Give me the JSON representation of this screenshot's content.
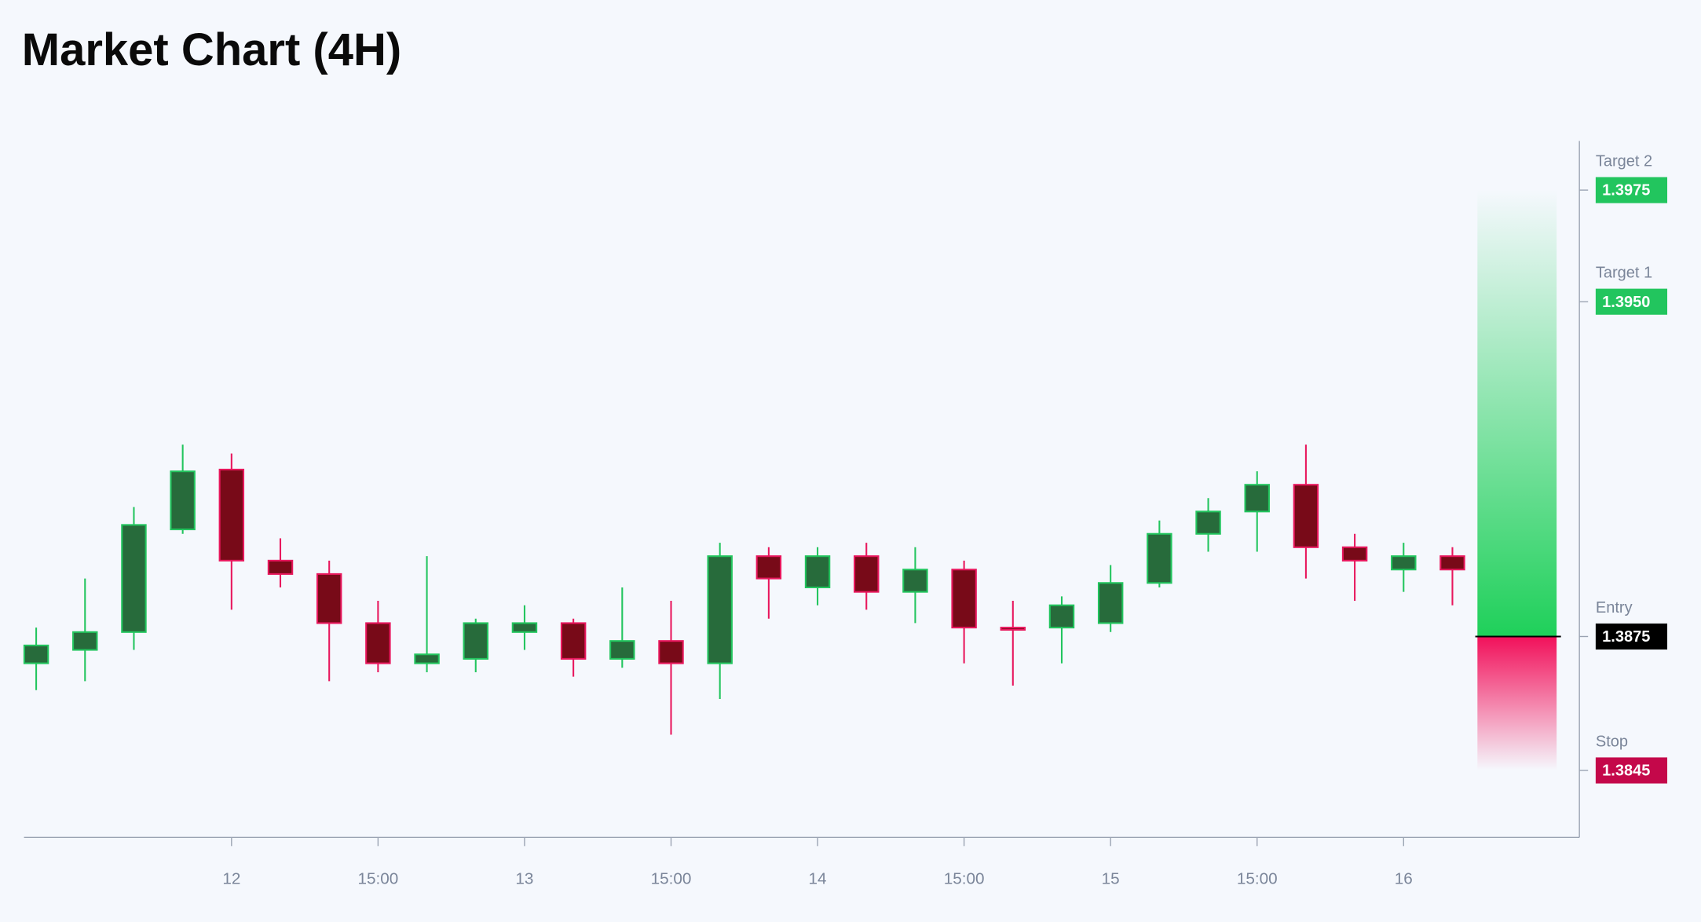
{
  "chart_data": {
    "type": "candlestick",
    "title": "Market Chart (4H)",
    "candles": {
      "open": [
        1.3869,
        1.3872,
        1.3876,
        1.3899,
        1.39124,
        1.3892,
        1.3889,
        1.3878,
        1.3869,
        1.387,
        1.3876,
        1.3878,
        1.387,
        1.3874,
        1.3869,
        1.3893,
        1.3886,
        1.3893,
        1.3885,
        1.389,
        1.3877,
        1.3877,
        1.3878,
        1.3887,
        1.3898,
        1.3903,
        1.3909,
        1.3895,
        1.389,
        1.3893
      ],
      "high": [
        1.3877,
        1.3888,
        1.3904,
        1.3918,
        1.3916,
        1.3897,
        1.3892,
        1.3883,
        1.3893,
        1.3879,
        1.3882,
        1.3879,
        1.3886,
        1.3883,
        1.3896,
        1.3895,
        1.3895,
        1.3896,
        1.3895,
        1.3892,
        1.3883,
        1.3884,
        1.3891,
        1.3901,
        1.3906,
        1.3912,
        1.3918,
        1.3898,
        1.3896,
        1.3895
      ],
      "low": [
        1.3863,
        1.3865,
        1.3872,
        1.3898,
        1.3881,
        1.3886,
        1.3865,
        1.3867,
        1.3867,
        1.3867,
        1.3872,
        1.3866,
        1.3868,
        1.3853,
        1.3861,
        1.3879,
        1.3882,
        1.3881,
        1.3878,
        1.3869,
        1.3864,
        1.3869,
        1.3876,
        1.3886,
        1.3894,
        1.3894,
        1.3888,
        1.3883,
        1.3885,
        1.3882
      ],
      "close": [
        1.3873,
        1.3876,
        1.39,
        1.3912,
        1.3892,
        1.3889,
        1.3878,
        1.3869,
        1.3871,
        1.3878,
        1.3878,
        1.387,
        1.3874,
        1.3869,
        1.3893,
        1.3888,
        1.3893,
        1.3885,
        1.389,
        1.3877,
        1.38765,
        1.3882,
        1.3887,
        1.3898,
        1.3903,
        1.3909,
        1.3895,
        1.3892,
        1.3893,
        1.389
      ]
    },
    "up_color": "#276b3b",
    "up_border": "#22c55e",
    "down_color": "#780a18",
    "down_border": "#e8175d",
    "xlim": [
      -0.25,
      31.6
    ],
    "xticks": [
      {
        "value": 4,
        "label": "12"
      },
      {
        "value": 7,
        "label": "15:00"
      },
      {
        "value": 10,
        "label": "13"
      },
      {
        "value": 13,
        "label": "15:00"
      },
      {
        "value": 16,
        "label": "14"
      },
      {
        "value": 19,
        "label": "15:00"
      },
      {
        "value": 22,
        "label": "15"
      },
      {
        "value": 25,
        "label": "15:00"
      },
      {
        "value": 28,
        "label": "16"
      }
    ],
    "ylim": [
      1.383,
      1.3986
    ],
    "levels": {
      "names": [
        "Target 2",
        "Target 1",
        "Entry",
        "Stop"
      ],
      "values": [
        1.3975,
        1.395,
        1.3875,
        1.3845
      ],
      "value_labels": [
        "1.3975",
        "1.3950",
        "1.3875",
        "1.3845"
      ],
      "colors": [
        "#22c55e",
        "#22c55e",
        "#000000",
        "#c4084a"
      ]
    },
    "profit_color": "#1fd05a",
    "loss_color": "#f2105a"
  }
}
